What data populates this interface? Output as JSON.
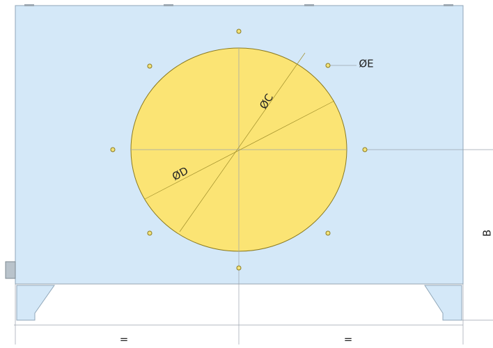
{
  "dimensions": {
    "c": "ØC",
    "d": "ØD",
    "e": "ØE",
    "b": "B",
    "left_half": "=",
    "right_half": "="
  }
}
